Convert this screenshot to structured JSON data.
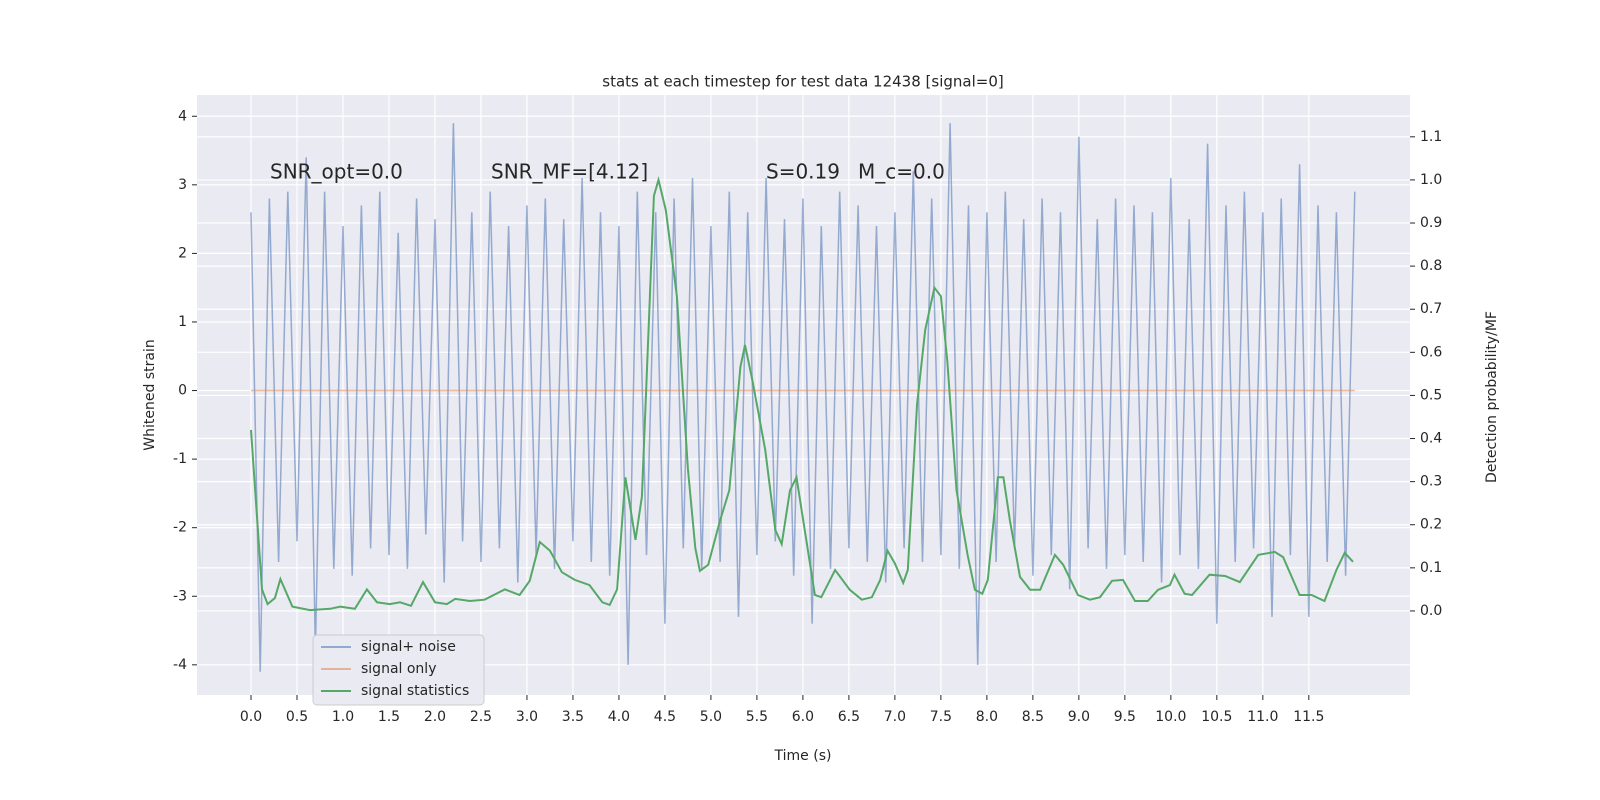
{
  "chart_data": {
    "type": "line",
    "title": "stats at each timestep for test data 12438 [signal=0]",
    "xlabel": "Time (s)",
    "ylabel": "Whitened strain",
    "y2label": "Detection probability/MF",
    "annotations": [
      "SNR_opt=0.0",
      "SNR_MF=[4.12]",
      "S=0.19",
      "M_c=0.0"
    ],
    "xlim": [
      -0.587,
      12.6
    ],
    "ylim": [
      -4.44,
      4.31
    ],
    "y2lim": [
      -0.195,
      1.197
    ],
    "xticks": [
      {
        "value": 0,
        "label": "0.0"
      },
      0.5,
      {
        "value": 1,
        "label": "1.0"
      },
      1.5,
      {
        "value": 2,
        "label": "2.0"
      },
      2.5,
      {
        "value": 3,
        "label": "3.0"
      },
      3.5,
      {
        "value": 4,
        "label": "4.0"
      },
      4.5,
      {
        "value": 5,
        "label": "5.0"
      },
      5.5,
      {
        "value": 6,
        "label": "6.0"
      },
      6.5,
      {
        "value": 7,
        "label": "7.0"
      },
      7.5,
      {
        "value": 8,
        "label": "8.0"
      },
      8.5,
      {
        "value": 9,
        "label": "9.0"
      },
      9.5,
      {
        "value": 10,
        "label": "10.0"
      },
      10.5,
      {
        "value": 11,
        "label": "11.0"
      },
      11.5
    ],
    "yticks": [
      -4,
      -3,
      -2,
      -1,
      0,
      1,
      2,
      3,
      4
    ],
    "y2ticks": [
      {
        "value": 0,
        "label": "0.0"
      },
      0.1,
      0.2,
      0.3,
      0.4,
      0.5,
      0.6,
      0.7,
      0.8,
      0.9,
      {
        "value": 1,
        "label": "1.0"
      },
      1.1
    ],
    "grid": true,
    "legend": "lower left",
    "series": [
      {
        "name": "signal+ noise",
        "color": "#4c72b0",
        "alpha": 0.55,
        "x": [
          0,
          0.1,
          0.2,
          0.3,
          0.4,
          0.5,
          0.6,
          0.7,
          0.8,
          0.9,
          1,
          1.1,
          1.2,
          1.3,
          1.4,
          1.5,
          1.6,
          1.7,
          1.8,
          1.9,
          2,
          2.1,
          2.2,
          2.3,
          2.4,
          2.5,
          2.6,
          2.7,
          2.8,
          2.9,
          3,
          3.1,
          3.2,
          3.3,
          3.4,
          3.5,
          3.6,
          3.7,
          3.8,
          3.9,
          4,
          4.1,
          4.2,
          4.3,
          4.4,
          4.5,
          4.6,
          4.7,
          4.8,
          4.9,
          5,
          5.1,
          5.2,
          5.3,
          5.4,
          5.5,
          5.6,
          5.7,
          5.8,
          5.9,
          6,
          6.1,
          6.2,
          6.3,
          6.4,
          6.5,
          6.6,
          6.7,
          6.8,
          6.9,
          7,
          7.1,
          7.2,
          7.3,
          7.4,
          7.5,
          7.6,
          7.7,
          7.8,
          7.9,
          8,
          8.1,
          8.2,
          8.3,
          8.4,
          8.5,
          8.6,
          8.7,
          8.8,
          8.9,
          9,
          9.1,
          9.2,
          9.3,
          9.4,
          9.5,
          9.6,
          9.7,
          9.8,
          9.9,
          10,
          10.1,
          10.2,
          10.3,
          10.4,
          10.5,
          10.6,
          10.7,
          10.8,
          10.9,
          11,
          11.1,
          11.2,
          11.3,
          11.4,
          11.5,
          11.6,
          11.7,
          11.8,
          11.9,
          12
        ],
        "values": [
          2.6,
          -4.1,
          2.8,
          -2.5,
          2.9,
          -2.2,
          3.4,
          -3.8,
          2.9,
          -2.6,
          2.4,
          -2.7,
          2.7,
          -2.3,
          2.9,
          -2.4,
          2.3,
          -2.6,
          2.8,
          -2.1,
          2.5,
          -2.8,
          3.9,
          -2.2,
          2.6,
          -2.5,
          2.9,
          -2.3,
          2.4,
          -2.8,
          2.7,
          -2.4,
          2.8,
          -2.6,
          2.5,
          -2.2,
          3.1,
          -2.5,
          2.6,
          -2.7,
          2.4,
          -4.0,
          2.9,
          -2.4,
          2.6,
          -3.4,
          2.8,
          -2.3,
          3.1,
          -2.6,
          2.4,
          -2.5,
          2.9,
          -3.3,
          2.6,
          -2.4,
          3.1,
          -2.2,
          2.5,
          -2.7,
          2.8,
          -3.4,
          2.4,
          -2.6,
          2.9,
          -2.3,
          2.7,
          -2.5,
          2.4,
          -2.8,
          2.6,
          -2.3,
          3.2,
          -2.5,
          2.8,
          -2.4,
          3.9,
          -2.6,
          2.7,
          -4.0,
          2.6,
          -2.5,
          2.9,
          -2.3,
          2.5,
          -2.7,
          2.8,
          -2.4,
          2.6,
          -2.9,
          3.7,
          -2.3,
          2.5,
          -2.6,
          2.8,
          -2.4,
          2.7,
          -2.5,
          2.6,
          -2.8,
          3.1,
          -2.4,
          2.5,
          -2.6,
          3.6,
          -3.4,
          2.7,
          -2.5,
          2.9,
          -2.3,
          2.6,
          -3.3,
          2.8,
          -2.4,
          3.3,
          -3.3,
          2.7,
          -2.5,
          2.6,
          -2.7,
          2.9
        ]
      },
      {
        "name": "signal only",
        "color": "#dd8452",
        "alpha": 0.55,
        "x": [
          0,
          12
        ],
        "values": [
          0,
          0
        ]
      },
      {
        "name": "signal statistics",
        "color": "#55a868",
        "alpha": 1,
        "axis": "y2",
        "x": [
          0,
          0.12,
          0.18,
          0.26,
          0.32,
          0.45,
          0.64,
          0.86,
          0.97,
          1.13,
          1.26,
          1.37,
          1.51,
          1.62,
          1.74,
          1.87,
          2.0,
          2.13,
          2.22,
          2.38,
          2.54,
          2.76,
          2.92,
          3.03,
          3.14,
          3.25,
          3.38,
          3.52,
          3.68,
          3.82,
          3.9,
          3.98,
          4.07,
          4.18,
          4.25,
          4.38,
          4.43,
          4.51,
          4.63,
          4.75,
          4.83,
          4.88,
          4.97,
          5.1,
          5.2,
          5.32,
          5.37,
          5.45,
          5.59,
          5.7,
          5.77,
          5.86,
          5.93,
          6.02,
          6.13,
          6.2,
          6.35,
          6.51,
          6.64,
          6.75,
          6.84,
          6.92,
          7.0,
          7.09,
          7.14,
          7.24,
          7.33,
          7.43,
          7.5,
          7.57,
          7.67,
          7.79,
          7.87,
          7.95,
          8.01,
          8.12,
          8.18,
          8.25,
          8.36,
          8.47,
          8.58,
          8.74,
          8.83,
          8.99,
          9.12,
          9.23,
          9.36,
          9.48,
          9.61,
          9.75,
          9.86,
          9.99,
          10.04,
          10.15,
          10.23,
          10.42,
          10.59,
          10.75,
          10.95,
          11.13,
          11.22,
          11.4,
          11.53,
          11.67,
          11.8,
          11.89,
          11.98
        ],
        "values": [
          0.42,
          0.05,
          0.016,
          0.03,
          0.074,
          0.01,
          0.002,
          0.005,
          0.01,
          0.005,
          0.05,
          0.02,
          0.016,
          0.02,
          0.012,
          0.067,
          0.02,
          0.016,
          0.028,
          0.023,
          0.026,
          0.05,
          0.037,
          0.07,
          0.16,
          0.14,
          0.09,
          0.072,
          0.06,
          0.02,
          0.014,
          0.05,
          0.31,
          0.165,
          0.265,
          0.963,
          1.0,
          0.93,
          0.73,
          0.33,
          0.146,
          0.093,
          0.107,
          0.21,
          0.28,
          0.566,
          0.617,
          0.536,
          0.374,
          0.188,
          0.155,
          0.28,
          0.31,
          0.188,
          0.037,
          0.032,
          0.095,
          0.049,
          0.026,
          0.032,
          0.072,
          0.14,
          0.11,
          0.065,
          0.095,
          0.478,
          0.652,
          0.75,
          0.73,
          0.58,
          0.28,
          0.13,
          0.049,
          0.04,
          0.072,
          0.31,
          0.31,
          0.21,
          0.079,
          0.049,
          0.049,
          0.13,
          0.107,
          0.037,
          0.026,
          0.032,
          0.07,
          0.072,
          0.023,
          0.023,
          0.049,
          0.06,
          0.084,
          0.04,
          0.037,
          0.084,
          0.081,
          0.067,
          0.13,
          0.137,
          0.125,
          0.037,
          0.037,
          0.023,
          0.095,
          0.135,
          0.114
        ]
      }
    ]
  }
}
